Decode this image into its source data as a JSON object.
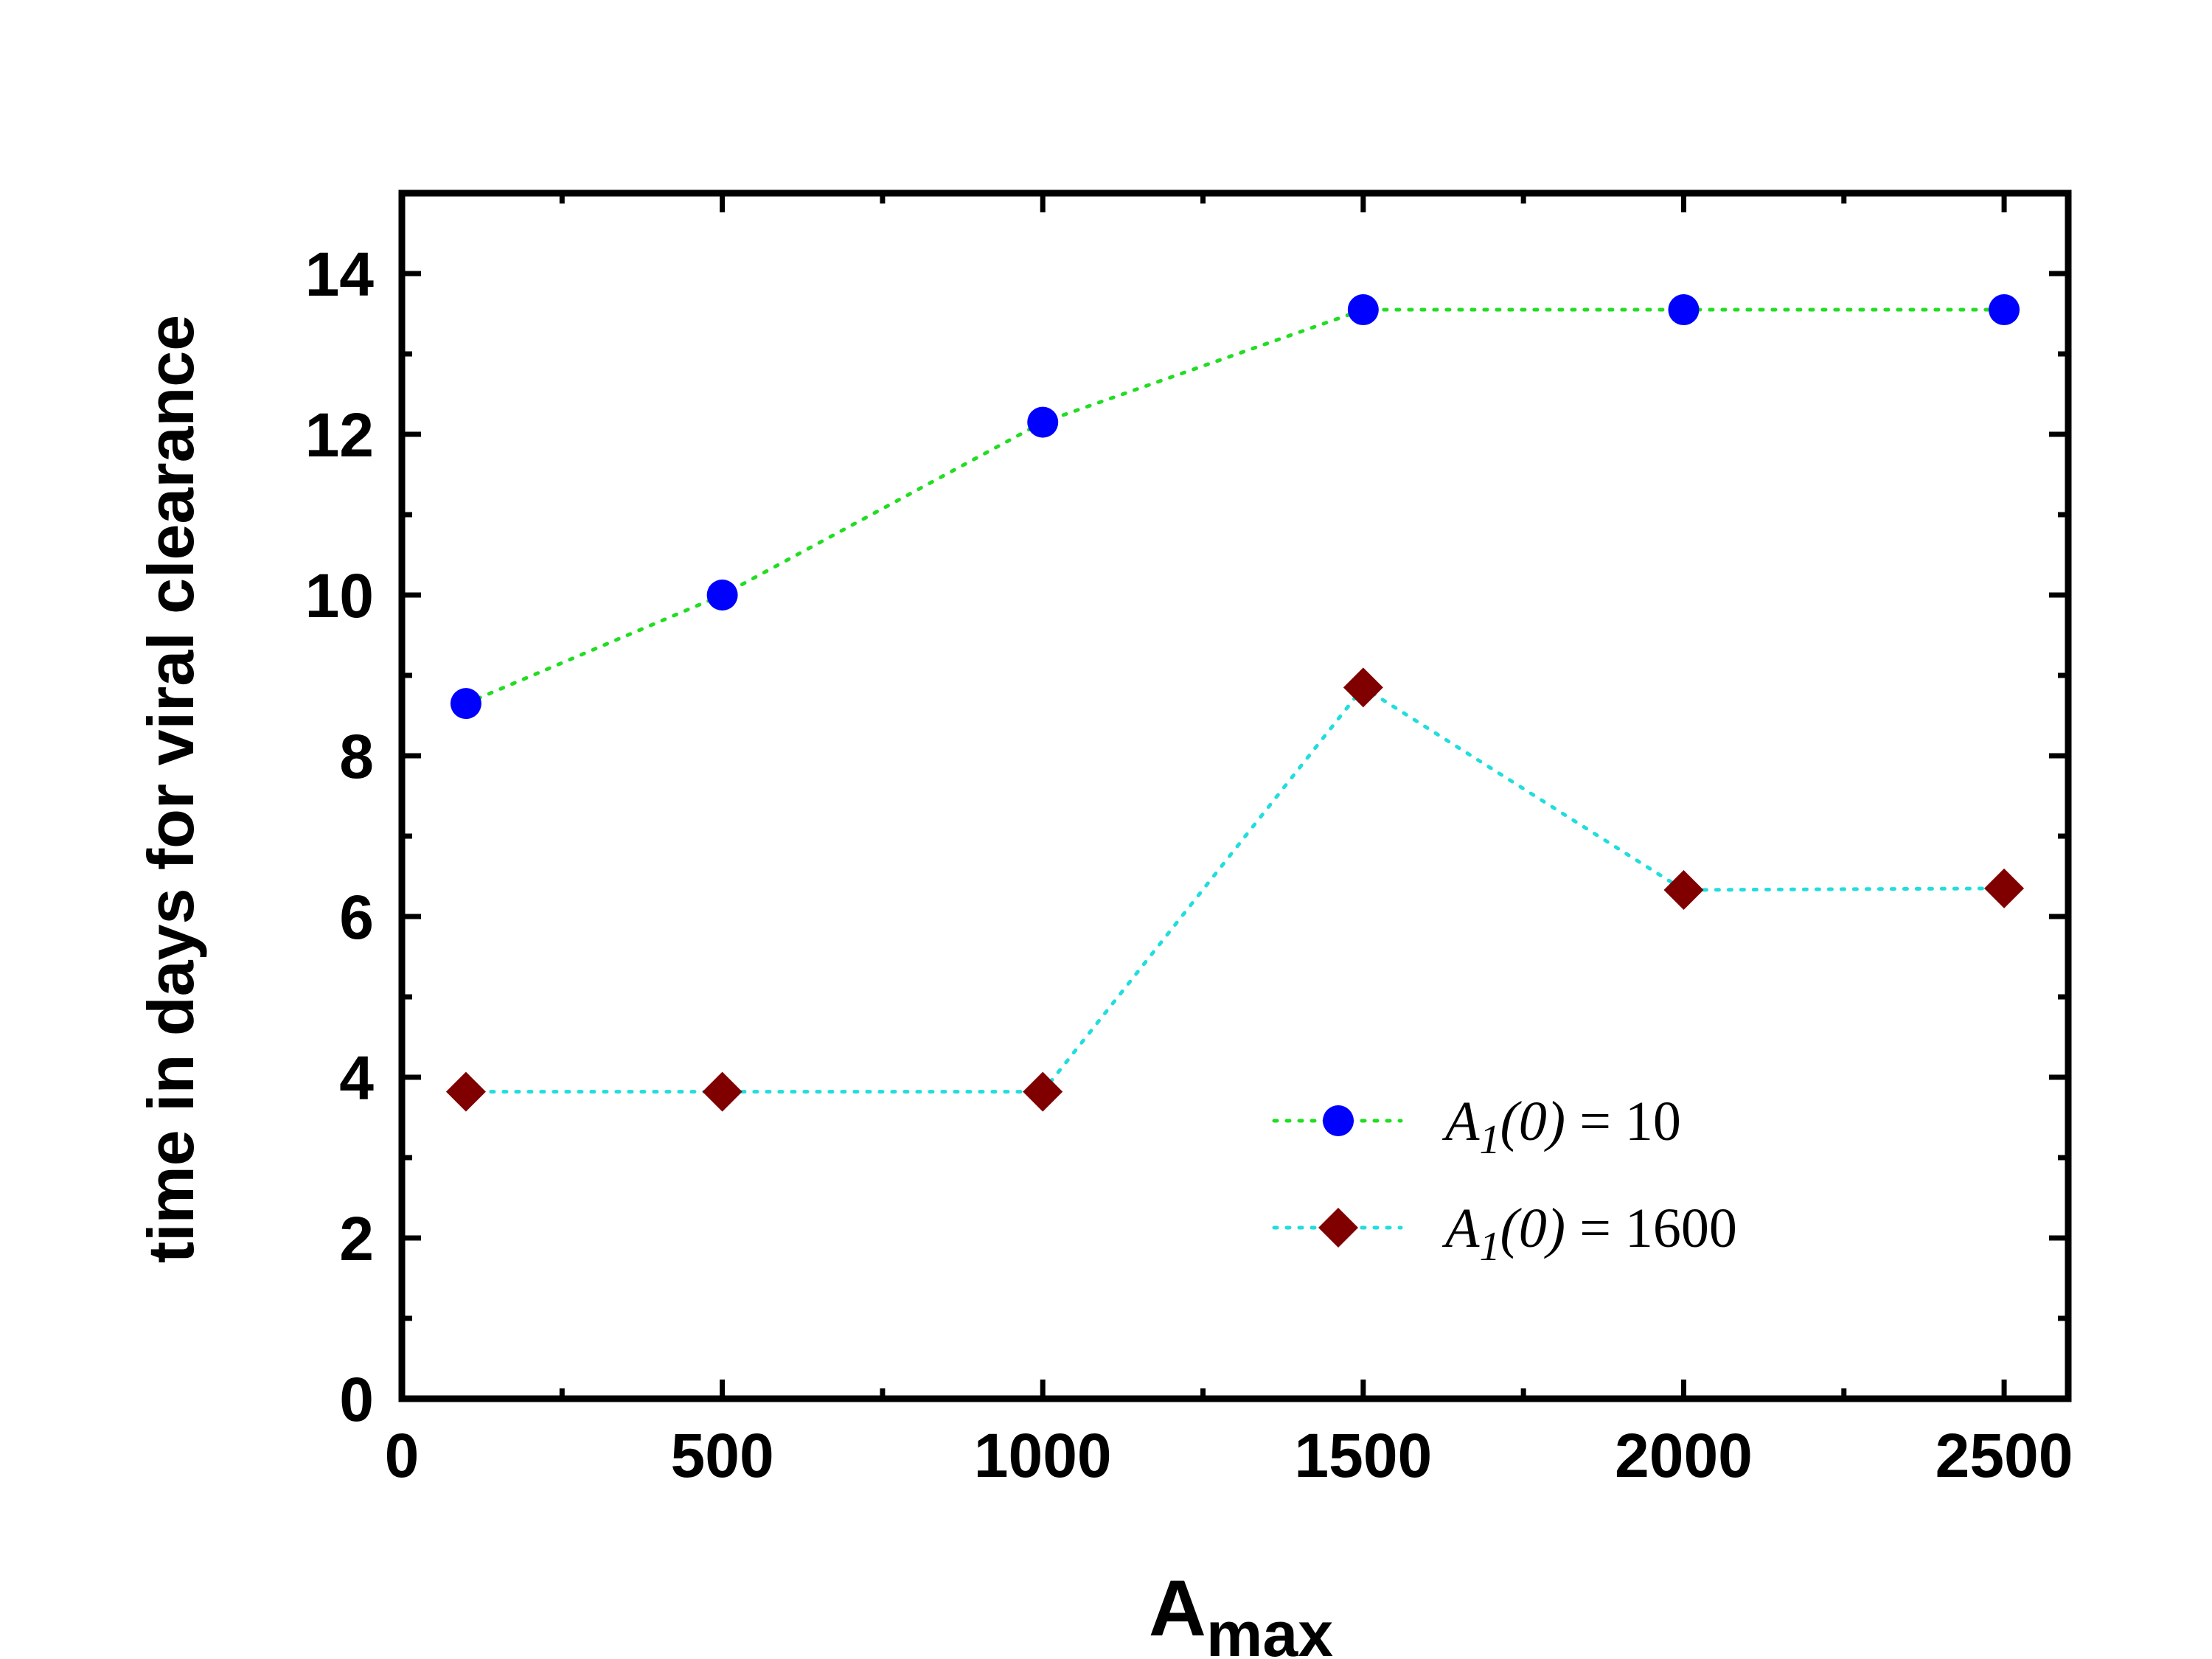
{
  "chart_data": {
    "type": "scatter",
    "xlabel_main": "A",
    "xlabel_sub": "max",
    "ylabel": "time in days for viral clearance",
    "xlim": [
      0,
      2600
    ],
    "ylim": [
      0,
      15
    ],
    "xticks": [
      0,
      500,
      1000,
      1500,
      2000,
      2500
    ],
    "yticks": [
      0,
      2,
      4,
      6,
      8,
      10,
      12,
      14
    ],
    "x_minor_step": 250,
    "y_minor_step": 1,
    "grid": false,
    "legend_position": "bottom-right",
    "series": [
      {
        "name": "A1(0) = 10",
        "legend": {
          "a": "A",
          "sub": "1",
          "paren": "(0)",
          "rest": " = 10"
        },
        "marker": "circle",
        "marker_color": "#0000ff",
        "line_color": "#22dd22",
        "line_style": "dotted",
        "x": [
          100,
          500,
          1000,
          1500,
          2000,
          2500
        ],
        "y": [
          8.65,
          10.0,
          12.15,
          13.55,
          13.55,
          13.55
        ]
      },
      {
        "name": "A1(0) = 1600",
        "legend": {
          "a": "A",
          "sub": "1",
          "paren": "(0)",
          "rest": " = 1600"
        },
        "marker": "diamond",
        "marker_color": "#800000",
        "line_color": "#22dddd",
        "line_style": "dotted",
        "x": [
          100,
          500,
          1000,
          1500,
          2000,
          2500
        ],
        "y": [
          3.82,
          3.82,
          3.82,
          8.85,
          6.33,
          6.35
        ]
      }
    ]
  }
}
